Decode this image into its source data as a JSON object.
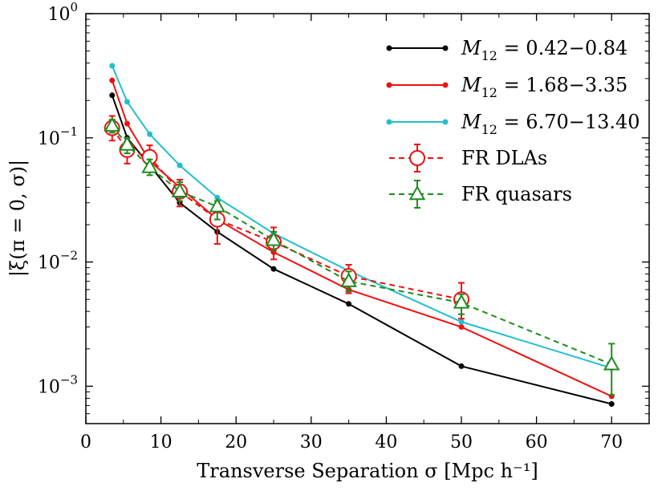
{
  "chart_data": {
    "type": "line",
    "title": "",
    "xlabel": "Transverse Separation σ [Mpc h⁻¹]",
    "ylabel": "|ξ(π = 0, σ)|",
    "xlim": [
      0,
      75
    ],
    "ylim": [
      0.0005,
      1
    ],
    "yscale": "log",
    "x_ticks": [
      0,
      10,
      20,
      30,
      40,
      50,
      60,
      70
    ],
    "x_tick_labels": [
      "0",
      "10",
      "20",
      "30",
      "40",
      "50",
      "60",
      "70"
    ],
    "y_ticks": [
      0.001,
      0.01,
      0.1,
      1
    ],
    "y_tick_labels": [
      {
        "base": "10",
        "exp": "−3"
      },
      {
        "base": "10",
        "exp": "−2"
      },
      {
        "base": "10",
        "exp": "−1"
      },
      {
        "base": "10",
        "exp": "0"
      }
    ],
    "legend_position": "top-right",
    "series": [
      {
        "name": "M12 = 0.42−0.84",
        "label_main": "M",
        "label_sub": "12",
        "label_rest": " = 0.42−0.84",
        "color": "#000000",
        "style": "solid-dot",
        "x": [
          3.5,
          5.5,
          8.5,
          12.5,
          17.5,
          25,
          35,
          50,
          70
        ],
        "y": [
          0.22,
          0.1,
          0.06,
          0.03,
          0.0175,
          0.0088,
          0.0046,
          0.00145,
          0.00072
        ]
      },
      {
        "name": "M12 = 1.68−3.35",
        "label_main": "M",
        "label_sub": "12",
        "label_rest": " = 1.68−3.35",
        "color": "#ee1111",
        "style": "solid-dot",
        "x": [
          3.5,
          5.5,
          8.5,
          12.5,
          17.5,
          25,
          35,
          50,
          70
        ],
        "y": [
          0.29,
          0.13,
          0.065,
          0.04,
          0.022,
          0.012,
          0.006,
          0.003,
          0.00083
        ]
      },
      {
        "name": "M12 = 6.70−13.40",
        "label_main": "M",
        "label_sub": "12",
        "label_rest": " = 6.70−13.40",
        "color": "#22bfcc",
        "style": "solid-dot",
        "x": [
          3.5,
          5.5,
          8.5,
          12.5,
          17.5,
          25,
          35,
          50,
          70
        ],
        "y": [
          0.38,
          0.195,
          0.107,
          0.06,
          0.033,
          0.017,
          0.0085,
          0.0033,
          0.0014
        ]
      },
      {
        "name": "FR DLAs",
        "label_main": "FR DLAs",
        "color": "#ee1111",
        "style": "dashed-circle",
        "x": [
          3.5,
          5.5,
          8.5,
          12.5,
          17.5,
          25,
          35,
          50
        ],
        "y": [
          0.12,
          0.08,
          0.07,
          0.037,
          0.022,
          0.0145,
          0.0077,
          0.005
        ],
        "err_low": [
          0.095,
          0.062,
          0.055,
          0.028,
          0.014,
          0.0105,
          0.0056,
          0.0035
        ],
        "err_high": [
          0.15,
          0.1,
          0.087,
          0.046,
          0.025,
          0.019,
          0.0095,
          0.0068
        ]
      },
      {
        "name": "FR quasars",
        "label_main": "FR quasars",
        "color": "#1e8c1e",
        "style": "dashed-triangle",
        "x": [
          3.5,
          5.5,
          8.5,
          12.5,
          17.5,
          25,
          35,
          50,
          70
        ],
        "y": [
          0.125,
          0.088,
          0.058,
          0.037,
          0.028,
          0.015,
          0.007,
          0.0047,
          0.0015
        ],
        "err_low": [
          0.11,
          0.075,
          0.05,
          0.031,
          0.022,
          0.0125,
          0.0058,
          0.0038,
          0.00085
        ],
        "err_high": [
          0.14,
          0.1,
          0.067,
          0.044,
          0.031,
          0.0175,
          0.0084,
          0.0055,
          0.0022
        ]
      }
    ]
  }
}
